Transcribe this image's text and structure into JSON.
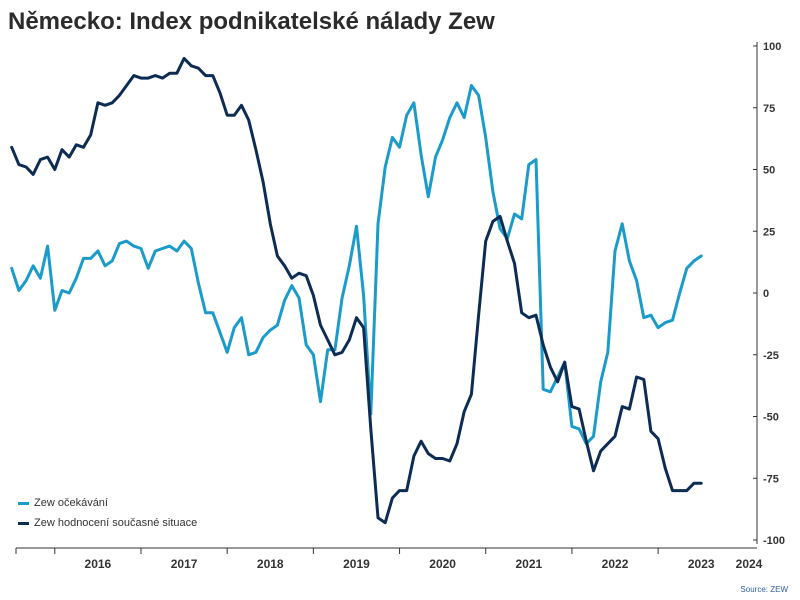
{
  "title": "Německo: Index podnikatelské nálady Zew",
  "source": "Source: ZEW",
  "colors": {
    "expectations": "#1b9bc9",
    "current": "#0d2c54",
    "axis": "#333333"
  },
  "chart_data": {
    "type": "line",
    "ylim": [
      -100,
      100
    ],
    "yticks": [
      100,
      75,
      50,
      25,
      0,
      -25,
      -50,
      -75,
      -100
    ],
    "xlim": [
      2015.55,
      2023.95
    ],
    "xticks": [
      "2016",
      "2017",
      "2018",
      "2019",
      "2020",
      "2021",
      "2022",
      "2023",
      "2024"
    ],
    "legend_position": "bottom-left",
    "series": [
      {
        "name": "Zew očekávání",
        "start": "2015-07",
        "values": [
          10,
          1,
          5,
          11,
          6,
          19,
          -7,
          1,
          0,
          6,
          14,
          14,
          17,
          11,
          13,
          20,
          21,
          19,
          18,
          10,
          17,
          18,
          19,
          17,
          21,
          18,
          4,
          -8,
          -8,
          -16,
          -24,
          -14,
          -10,
          -25,
          -24,
          -18,
          -15,
          -13,
          -3,
          3,
          -2,
          -21,
          -25,
          -44,
          -23,
          -23,
          -2,
          11,
          27,
          -1,
          -49,
          28,
          51,
          63,
          59,
          72,
          77,
          56,
          39,
          55,
          62,
          71,
          77,
          71,
          84,
          80,
          63,
          41,
          26,
          22,
          32,
          30,
          52,
          54,
          -39,
          -40,
          -34,
          -28,
          -54,
          -55,
          -61,
          -58,
          -36,
          -24,
          17,
          28,
          13,
          5,
          -10,
          -9,
          -14,
          -12,
          -11,
          0,
          10,
          13,
          15
        ]
      },
      {
        "name": "Zew hodnocení současné situace",
        "start": "2015-07",
        "values": [
          59,
          52,
          51,
          48,
          54,
          55,
          50,
          58,
          55,
          60,
          59,
          64,
          77,
          76,
          77,
          80,
          84,
          88,
          87,
          87,
          88,
          87,
          89,
          89,
          95,
          92,
          91,
          88,
          88,
          81,
          72,
          72,
          76,
          70,
          58,
          45,
          28,
          15,
          11,
          6,
          8,
          7,
          -1,
          -13,
          -19,
          -25,
          -24,
          -19,
          -10,
          -14,
          -55,
          -91,
          -93,
          -83,
          -80,
          -80,
          -66,
          -60,
          -65,
          -67,
          -67,
          -68,
          -61,
          -48,
          -41,
          -9,
          21,
          29,
          31,
          21,
          12,
          -8,
          -10,
          -9,
          -21,
          -30,
          -36,
          -28,
          -46,
          -47,
          -60,
          -72,
          -64,
          -61,
          -58,
          -46,
          -47,
          -34,
          -35,
          -56,
          -59,
          -71,
          -80,
          -80,
          -80,
          -77,
          -77
        ]
      }
    ]
  }
}
